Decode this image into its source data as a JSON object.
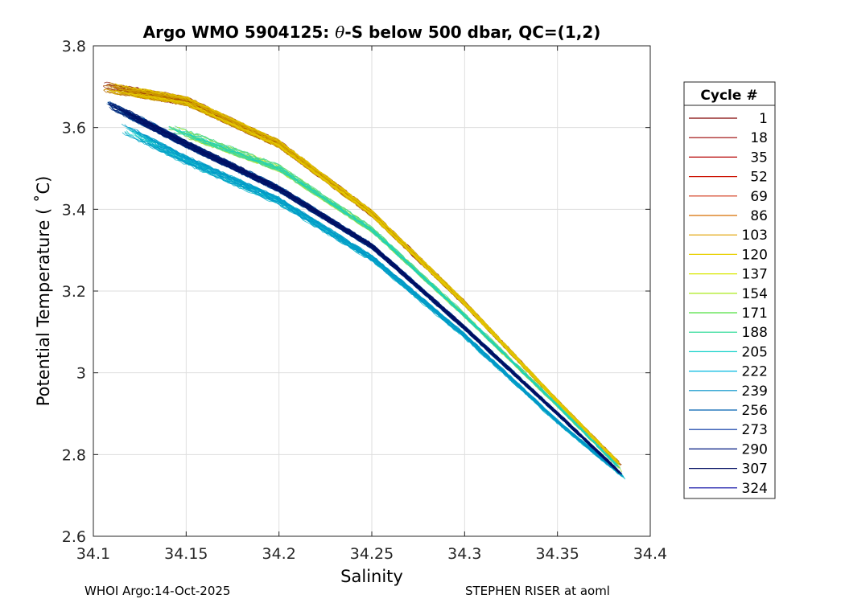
{
  "chart_data": {
    "type": "line",
    "title_prefix": "Argo WMO 5904125: ",
    "title_theta": "θ",
    "title_suffix": "-S below 500 dbar,  QC=(1,2)",
    "xlabel": "Salinity",
    "ylabel": "Potential Temperature ( ˚C)",
    "xlim": [
      34.1,
      34.4
    ],
    "ylim": [
      2.6,
      3.8
    ],
    "xticks": [
      34.1,
      34.15,
      34.2,
      34.25,
      34.3,
      34.35,
      34.4
    ],
    "xtick_labels": [
      "34.1",
      "34.15",
      "34.2",
      "34.25",
      "34.3",
      "34.35",
      "34.4"
    ],
    "yticks": [
      2.6,
      2.8,
      3.0,
      3.2,
      3.4,
      3.6,
      3.8
    ],
    "ytick_labels": [
      "2.6",
      "2.8",
      "3",
      "3.2",
      "3.4",
      "3.6",
      "3.8"
    ],
    "grid": true,
    "legend_title": "Cycle #",
    "legend_position": "outside-right",
    "legend": [
      {
        "label": "1",
        "color": "#800000"
      },
      {
        "label": "18",
        "color": "#9a0000"
      },
      {
        "label": "35",
        "color": "#b40000"
      },
      {
        "label": "52",
        "color": "#cc1000"
      },
      {
        "label": "69",
        "color": "#d03010"
      },
      {
        "label": "86",
        "color": "#d86e00"
      },
      {
        "label": "103",
        "color": "#e0a000"
      },
      {
        "label": "120",
        "color": "#e8d000"
      },
      {
        "label": "137",
        "color": "#d8e800"
      },
      {
        "label": "154",
        "color": "#a0e800"
      },
      {
        "label": "171",
        "color": "#50e040"
      },
      {
        "label": "188",
        "color": "#20d890"
      },
      {
        "label": "205",
        "color": "#10d0c8"
      },
      {
        "label": "222",
        "color": "#00b8e0"
      },
      {
        "label": "239",
        "color": "#0090c8"
      },
      {
        "label": "256",
        "color": "#0060b0"
      },
      {
        "label": "273",
        "color": "#0030a0"
      },
      {
        "label": "290",
        "color": "#001880"
      },
      {
        "label": "307",
        "color": "#000c60"
      },
      {
        "label": "324",
        "color": "#0000a0"
      }
    ],
    "series_envelope": [
      {
        "group": "warm",
        "color_range": [
          "#800000",
          "#e8d000"
        ],
        "x": [
          34.105,
          34.15,
          34.2,
          34.25,
          34.3,
          34.35,
          34.385
        ],
        "y": [
          3.7,
          3.665,
          3.56,
          3.39,
          3.17,
          2.93,
          2.77
        ]
      },
      {
        "group": "green",
        "color_range": [
          "#d8e800",
          "#10d0c8"
        ],
        "x": [
          34.14,
          34.2,
          34.25,
          34.3,
          34.35,
          34.385
        ],
        "y": [
          3.6,
          3.5,
          3.35,
          3.14,
          2.92,
          2.76
        ]
      },
      {
        "group": "cyan",
        "color_range": [
          "#10d0c8",
          "#0090c8"
        ],
        "x": [
          34.115,
          34.15,
          34.2,
          34.25,
          34.3,
          34.35,
          34.387
        ],
        "y": [
          3.6,
          3.52,
          3.42,
          3.28,
          3.09,
          2.88,
          2.74
        ]
      },
      {
        "group": "blue",
        "color_range": [
          "#0060b0",
          "#000c60"
        ],
        "x": [
          34.107,
          34.15,
          34.2,
          34.25,
          34.3,
          34.35,
          34.385
        ],
        "y": [
          3.66,
          3.56,
          3.45,
          3.31,
          3.11,
          2.9,
          2.75
        ]
      }
    ]
  },
  "footer": {
    "left": "WHOI Argo:14-Oct-2025",
    "right": "STEPHEN RISER at aoml"
  }
}
